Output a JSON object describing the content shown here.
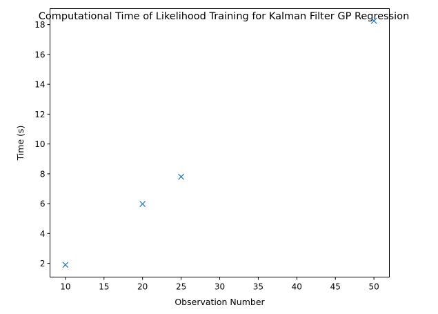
{
  "chart_data": {
    "type": "scatter",
    "title": "Computational Time of Likelihood Training for Kalman Filter GP Regression",
    "xlabel": "Observation Number",
    "ylabel": "Time (s)",
    "xlim": [
      8.0,
      52.0
    ],
    "ylim": [
      1.08,
      19.07
    ],
    "x_ticks": [
      10,
      15,
      20,
      25,
      30,
      35,
      40,
      45,
      50
    ],
    "y_ticks": [
      2,
      4,
      6,
      8,
      10,
      12,
      14,
      16,
      18
    ],
    "marker": "x",
    "grid": false,
    "series": [
      {
        "name": "time",
        "color": "#1f77b4",
        "x": [
          10,
          20,
          25,
          50
        ],
        "y": [
          1.9,
          5.98,
          7.8,
          18.25
        ]
      }
    ]
  }
}
